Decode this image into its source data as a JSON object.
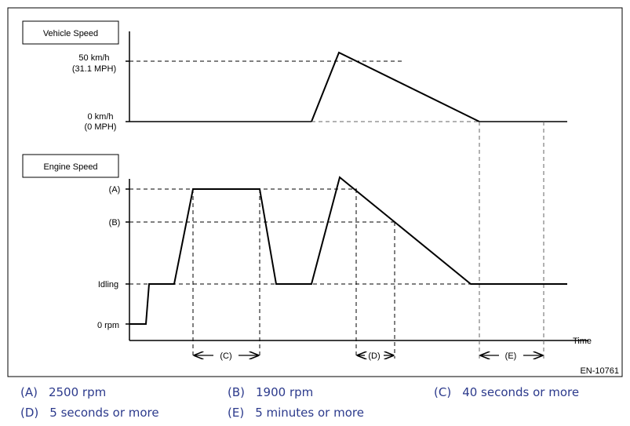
{
  "boxes": {
    "vehicle_speed": "Vehicle Speed",
    "engine_speed": "Engine Speed"
  },
  "vehicle_axis": {
    "tick_50_line1": "50 km/h",
    "tick_50_line2": "(31.1 MPH)",
    "tick_0_line1": "0  km/h",
    "tick_0_line2": "(0 MPH)"
  },
  "engine_axis": {
    "tick_a": "(A)",
    "tick_b": "(B)",
    "tick_idling": "Idling",
    "tick_0": "0 rpm"
  },
  "time_label": "Time",
  "intervals": {
    "c": "(C)",
    "d": "(D)",
    "e": "(E)"
  },
  "figure_id": "EN-10761",
  "legend": [
    {
      "key": "(A)",
      "text": "2500 rpm"
    },
    {
      "key": "(B)",
      "text": "1900 rpm"
    },
    {
      "key": "(C)",
      "text": "40 seconds or more"
    },
    {
      "key": "(D)",
      "text": "5 seconds or more"
    },
    {
      "key": "(E)",
      "text": "5 minutes or more"
    }
  ],
  "colors": {
    "legend_text": "#2c3a8c",
    "line": "#000000",
    "dash": "#000000"
  }
}
